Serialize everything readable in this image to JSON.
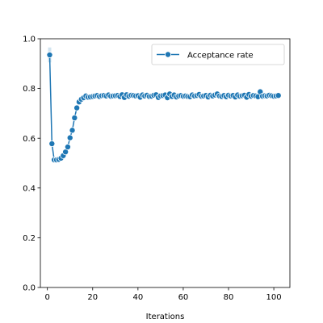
{
  "chart_data": {
    "type": "line",
    "title": "",
    "xlabel": "Iterations",
    "ylabel": "",
    "xlim": [
      -3.1,
      107.1
    ],
    "ylim": [
      0.0,
      1.0
    ],
    "xticks": [
      0,
      20,
      40,
      60,
      80,
      100
    ],
    "yticks": [
      0.0,
      0.2,
      0.4,
      0.6,
      0.8,
      1.0
    ],
    "xtick_labels": [
      "0",
      "20",
      "40",
      "60",
      "80",
      "100"
    ],
    "ytick_labels": [
      "0.0",
      "0.2",
      "0.4",
      "0.6",
      "0.8",
      "1.0"
    ],
    "grid": false,
    "legend": {
      "position": "upper-right"
    },
    "colors": {
      "series": "#1f77b4",
      "marker_edge": "#ffffff",
      "band": "#1f77b4"
    },
    "series": [
      {
        "name": "Acceptance rate",
        "x": [
          1,
          2,
          3,
          4,
          5,
          6,
          7,
          8,
          9,
          10,
          11,
          12,
          13,
          14,
          15,
          16,
          17,
          18,
          19,
          20,
          21,
          22,
          23,
          24,
          25,
          26,
          27,
          28,
          29,
          30,
          31,
          32,
          33,
          34,
          35,
          36,
          37,
          38,
          39,
          40,
          41,
          42,
          43,
          44,
          45,
          46,
          47,
          48,
          49,
          50,
          51,
          52,
          53,
          54,
          55,
          56,
          57,
          58,
          59,
          60,
          61,
          62,
          63,
          64,
          65,
          66,
          67,
          68,
          69,
          70,
          71,
          72,
          73,
          74,
          75,
          76,
          77,
          78,
          79,
          80,
          81,
          82,
          83,
          84,
          85,
          86,
          87,
          88,
          89,
          90,
          91,
          92,
          93,
          94,
          95,
          96,
          97,
          98,
          99,
          100,
          101,
          102
        ],
        "y": [
          0.935,
          0.578,
          0.513,
          0.513,
          0.515,
          0.52,
          0.53,
          0.545,
          0.565,
          0.602,
          0.632,
          0.682,
          0.722,
          0.746,
          0.757,
          0.763,
          0.77,
          0.765,
          0.766,
          0.768,
          0.77,
          0.772,
          0.768,
          0.771,
          0.772,
          0.77,
          0.774,
          0.769,
          0.77,
          0.771,
          0.772,
          0.768,
          0.775,
          0.764,
          0.775,
          0.769,
          0.773,
          0.772,
          0.77,
          0.771,
          0.765,
          0.774,
          0.77,
          0.773,
          0.768,
          0.769,
          0.773,
          0.775,
          0.764,
          0.77,
          0.772,
          0.774,
          0.763,
          0.778,
          0.768,
          0.774,
          0.766,
          0.77,
          0.772,
          0.769,
          0.77,
          0.768,
          0.767,
          0.774,
          0.77,
          0.772,
          0.776,
          0.769,
          0.77,
          0.772,
          0.766,
          0.773,
          0.77,
          0.774,
          0.778,
          0.77,
          0.768,
          0.772,
          0.767,
          0.773,
          0.77,
          0.772,
          0.766,
          0.774,
          0.769,
          0.771,
          0.773,
          0.765,
          0.776,
          0.769,
          0.772,
          0.77,
          0.767,
          0.787,
          0.769,
          0.771,
          0.77,
          0.773,
          0.771,
          0.769,
          0.77,
          0.772
        ],
        "band_lower": [
          0.905
        ],
        "band_upper": [
          0.965
        ]
      }
    ]
  }
}
